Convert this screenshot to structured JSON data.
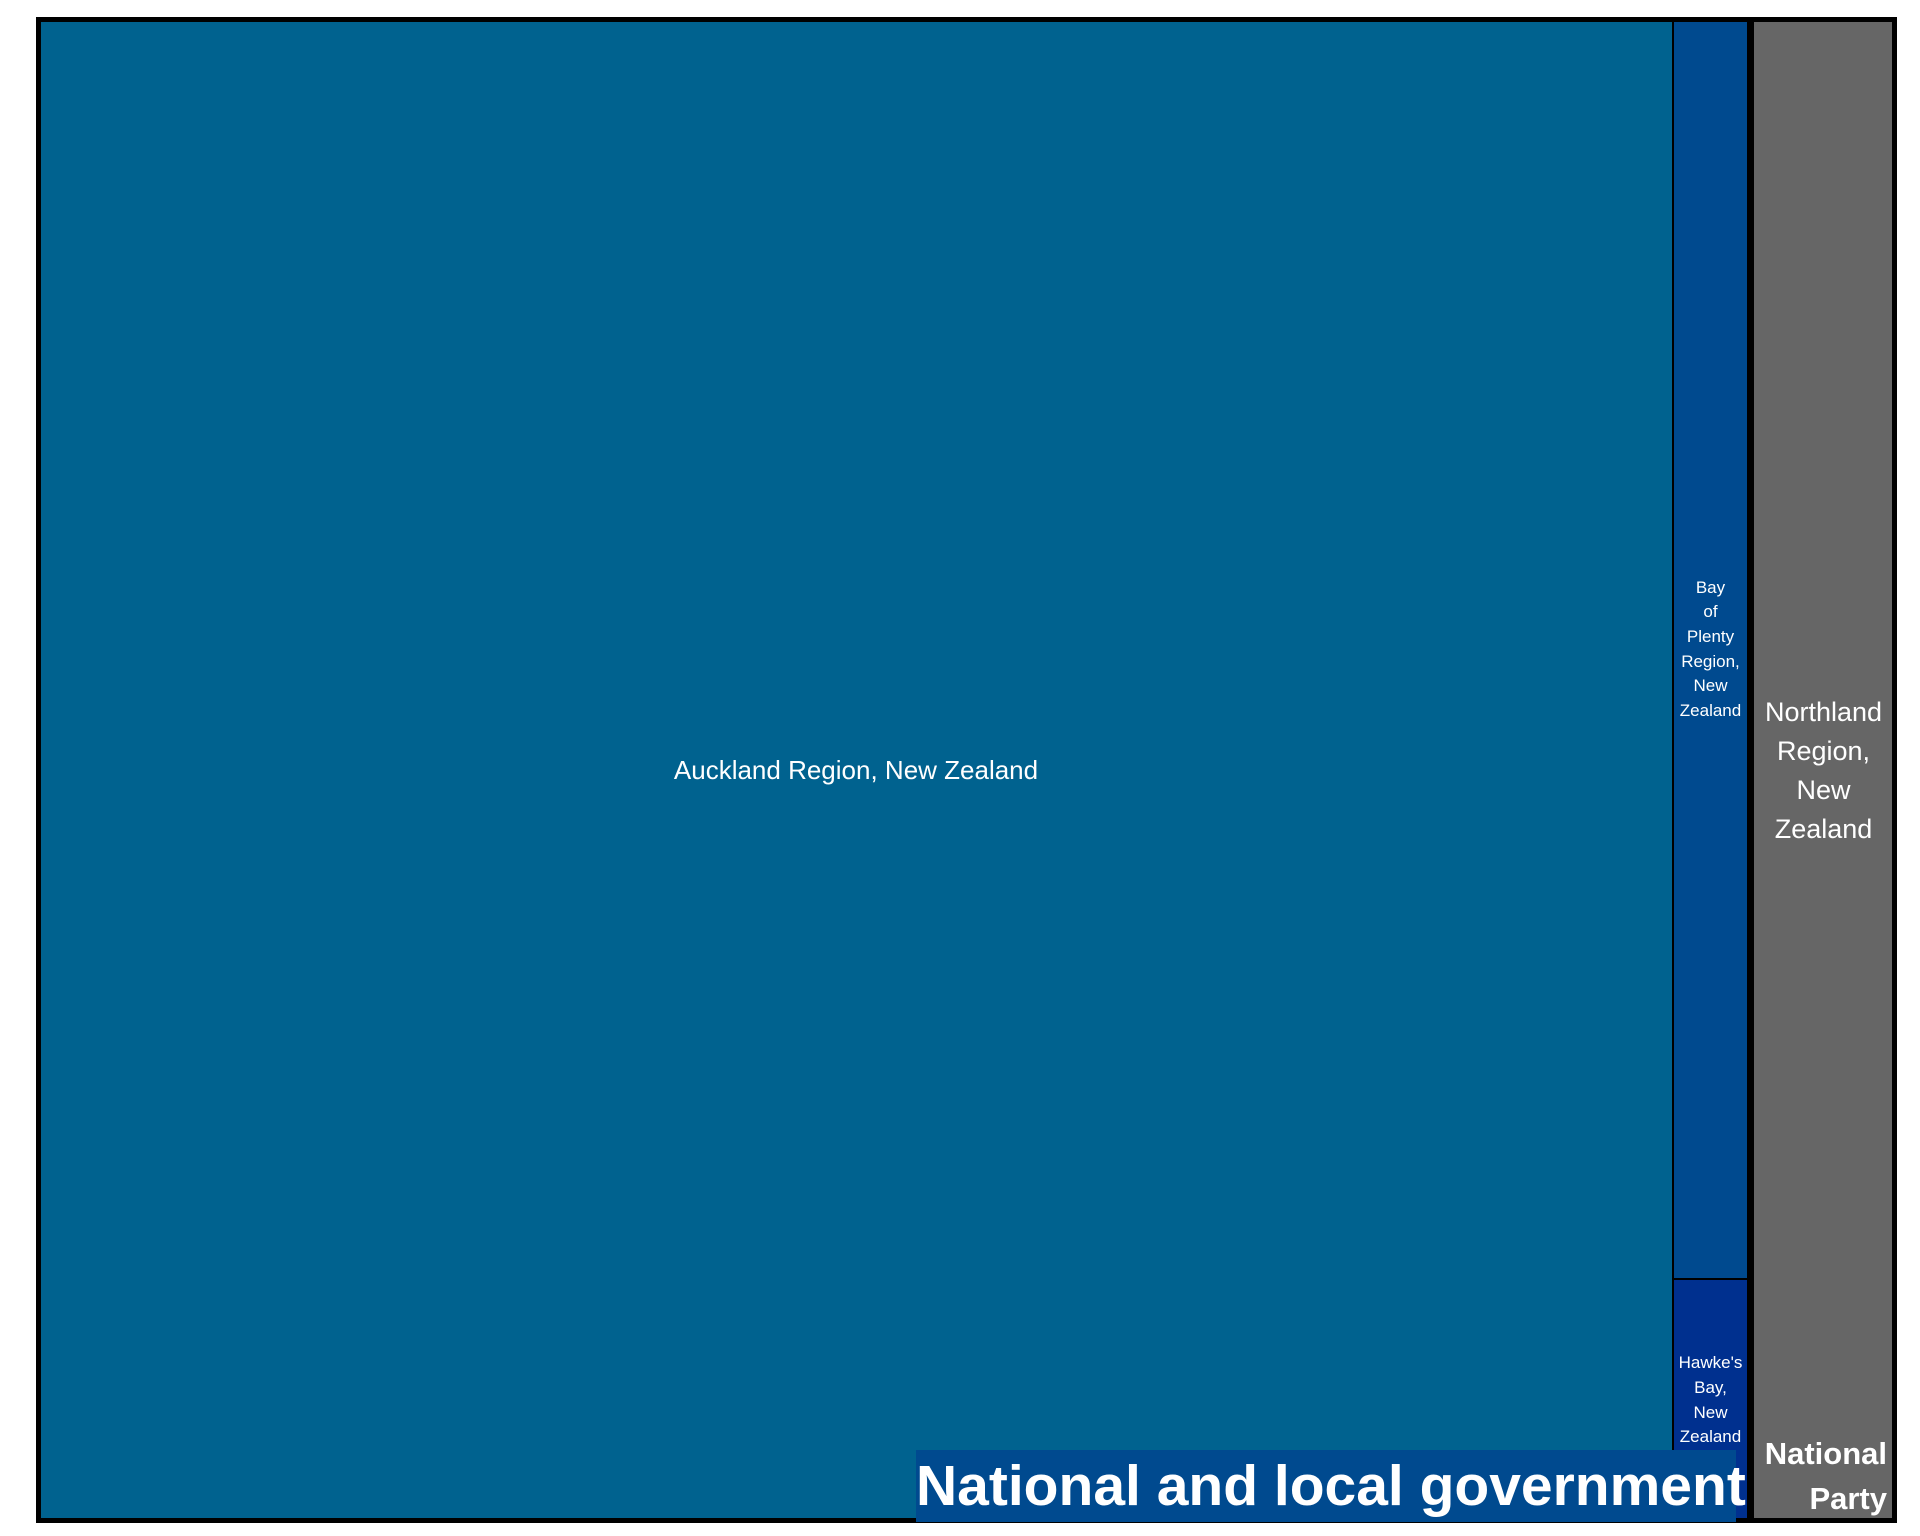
{
  "chart_data": {
    "type": "treemap",
    "groups": [
      {
        "label": "National and local government",
        "color": "#004a8f",
        "children": [
          {
            "label": "Auckland Region, New Zealand",
            "value": 88.0,
            "color": "#00628f"
          },
          {
            "label": "Bay of Plenty Region, New Zealand",
            "value": 3.3,
            "color": "#004a8f"
          },
          {
            "label": "Hawke's Bay, New Zealand",
            "value": 0.9,
            "color": "#00308f"
          }
        ]
      },
      {
        "label": "National Party",
        "color": "#666666",
        "children": [
          {
            "label": "Northland Region, New Zealand",
            "value": 7.8,
            "color": "#666666"
          }
        ]
      }
    ]
  }
}
